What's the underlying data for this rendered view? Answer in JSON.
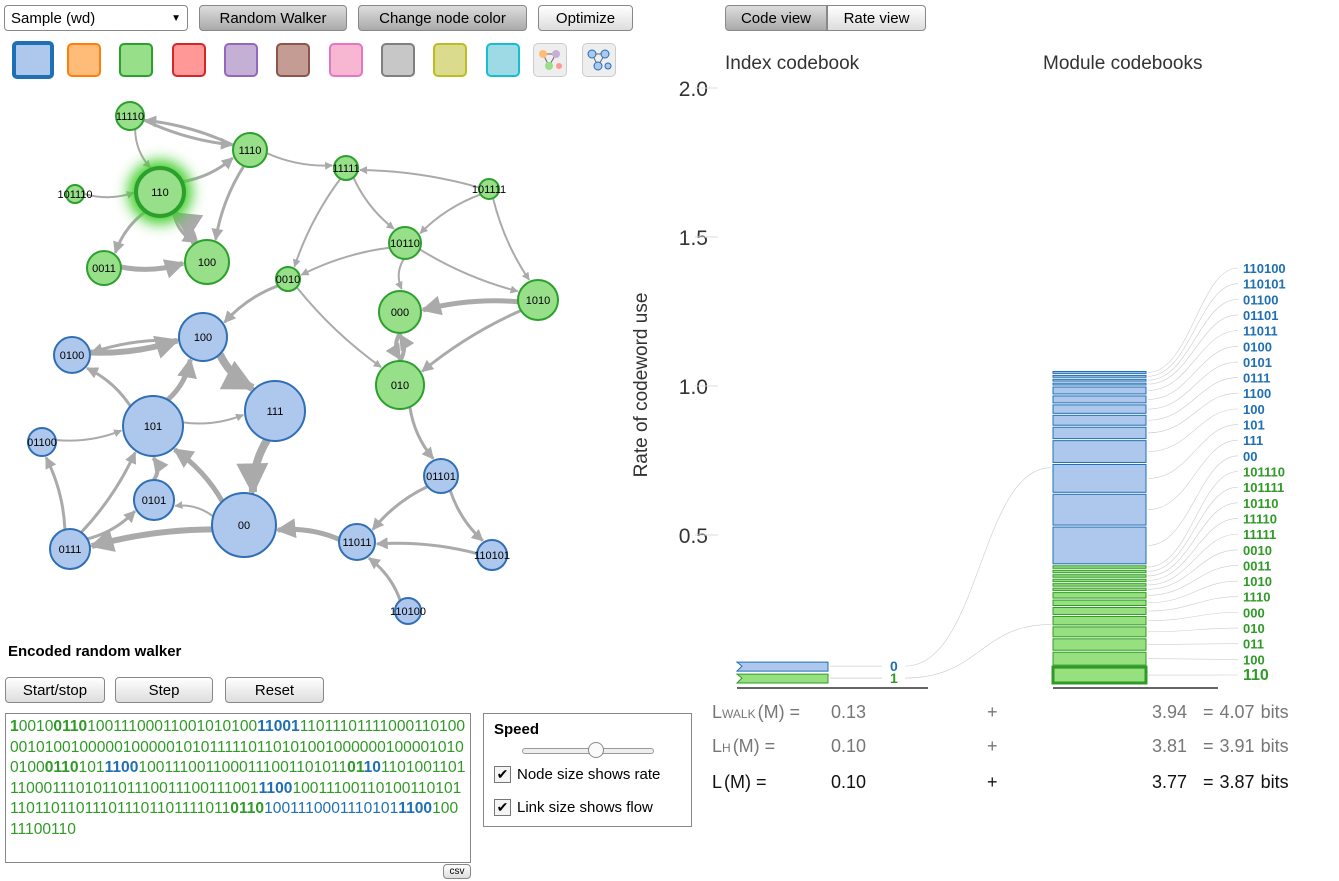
{
  "toolbar": {
    "network": "Sample (wd)",
    "buttons": [
      "Random Walker",
      "Change node color",
      "Optimize"
    ]
  },
  "network": {
    "nodes": [
      "11110",
      "1110",
      "110",
      "101110",
      "0011",
      "100",
      "11111",
      "101111",
      "10110",
      "0010",
      "000",
      "1010",
      "010",
      "0100",
      "100",
      "111",
      "101",
      "01100",
      "0101",
      "00",
      "0111",
      "01101",
      "11011",
      "110101",
      "110100"
    ]
  },
  "walker": {
    "title": "Encoded random walker",
    "buttons": [
      "Start/stop",
      "Step",
      "Reset"
    ],
    "export": "csv",
    "segments": [
      {
        "text": "1",
        "color": "#2f9a26",
        "bold": true
      },
      {
        "text": "0010",
        "color": "#2f9a26"
      },
      {
        "text": "0110",
        "color": "#2f9a26",
        "bold": true
      },
      {
        "text": "10011100011001010100",
        "color": "#2f9a26"
      },
      {
        "text": "11001",
        "color": "#1f6fb5",
        "bold": true
      },
      {
        "text": "11011101111000110100001010010000010000010101111101101010010000001000010100100",
        "color": "#2f9a26"
      },
      {
        "text": "0110",
        "color": "#2f9a26",
        "bold": true
      },
      {
        "text": "101",
        "color": "#2f9a26"
      },
      {
        "text": "1100",
        "color": "#1f6fb5",
        "bold": true
      },
      {
        "text": "1001110011000111001101011",
        "color": "#2f9a26"
      },
      {
        "text": "01",
        "color": "#2f9a26",
        "bold": true
      },
      {
        "text": "10",
        "color": "#1f6fb5",
        "bold": true
      },
      {
        "text": "1101001101110001110101101110011100111001",
        "color": "#2f9a26"
      },
      {
        "text": "1100",
        "color": "#1f6fb5",
        "bold": true
      },
      {
        "text": "1001110",
        "color": "#2f9a26"
      },
      {
        "text": "0110100110101110110110111011101101111011",
        "color": "#2f9a26"
      },
      {
        "text": "0110",
        "color": "#2f9a26",
        "bold": true
      },
      {
        "text": "100111",
        "color": "#1f6fb5"
      },
      {
        "text": "0001110101",
        "color": "#1f6fb5"
      },
      {
        "text": "1100",
        "color": "#1f6fb5",
        "bold": true
      },
      {
        "text": "10011100110",
        "color": "#2f9a26"
      }
    ]
  },
  "options": {
    "title": "Speed",
    "checkboxes": [
      "Node size shows rate",
      "Link size shows flow"
    ]
  },
  "chart_data": {
    "type": "codebook",
    "views": [
      "Code view",
      "Rate view"
    ],
    "titles": [
      "Index codebook",
      "Module codebooks"
    ],
    "y_label": "Rate of codeword use",
    "ylim": [
      0,
      2
    ],
    "yticks": [
      0.5,
      {
        "value": 1,
        "label": "1.0"
      },
      1.5,
      {
        "value": 2,
        "label": "2.0"
      }
    ],
    "index_codebook": {
      "codewords": [
        "0",
        "1"
      ],
      "rates": [
        0.04,
        0.04
      ]
    },
    "modules": [
      {
        "color": "#1f6fb5",
        "fill": "#aec7ec",
        "codewords": [
          "110100",
          "110101",
          "01100",
          "01101",
          "11011",
          "0100",
          "0101",
          "0111",
          "1100",
          "100",
          "101",
          "111",
          "00"
        ],
        "rates": [
          0.013,
          0.013,
          0.013,
          0.013,
          0.03,
          0.03,
          0.035,
          0.04,
          0.045,
          0.08,
          0.1,
          0.11,
          0.13
        ]
      },
      {
        "color": "#2f9a26",
        "fill": "#97e07f",
        "codewords": [
          "101110",
          "101111",
          "10110",
          "11110",
          "11111",
          "0010",
          "0011",
          "1010",
          "1110",
          "000",
          "010",
          "011",
          "100",
          "110"
        ],
        "rates": [
          0.015,
          0.015,
          0.015,
          0.015,
          0.015,
          0.015,
          0.025,
          0.025,
          0.03,
          0.035,
          0.04,
          0.045,
          0.05,
          0.06
        ]
      }
    ]
  },
  "description_length": {
    "plus": "+",
    "equals": "=",
    "unit": "bits",
    "rows": [
      {
        "symbol": "L",
        "subscript": "WALK",
        "argument": "(M) =",
        "index": "0.13",
        "module": "3.94",
        "total": "4.07"
      },
      {
        "symbol": "L",
        "subscript": "H",
        "argument": "(M) =",
        "index": "0.10",
        "module": "3.81",
        "total": "3.91"
      },
      {
        "symbol": "L",
        "argument": "(M) =",
        "index": "0.10",
        "module": "3.77",
        "total": "3.87"
      }
    ]
  }
}
